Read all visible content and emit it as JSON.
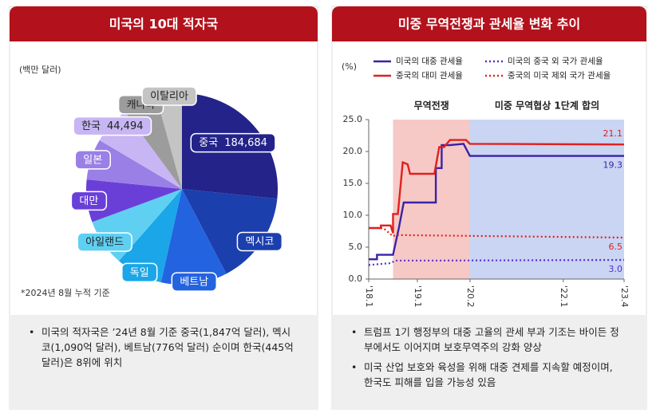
{
  "chart_data": [
    {
      "type": "pie",
      "title": "미국의 10대 적자국",
      "unit": "(백만 달러)",
      "note": "*2024년 8월 누적 기준",
      "categories": [
        "중국",
        "멕시코",
        "베트남",
        "독일",
        "아일랜드",
        "대만",
        "일본",
        "한국",
        "캐나다",
        "이탈리아"
      ],
      "values": [
        184684,
        109000,
        77600,
        55000,
        55000,
        50000,
        48000,
        44494,
        40000,
        30000
      ],
      "value_labels": [
        "184,684",
        null,
        null,
        null,
        null,
        null,
        null,
        "44,494",
        null,
        null
      ],
      "colors": [
        "#23238a",
        "#1c3fae",
        "#2363e0",
        "#1aa6e8",
        "#5fd0f2",
        "#6a3fd8",
        "#9a7fe6",
        "#c7b6f3",
        "#9c9c9c",
        "#c4c4c4"
      ],
      "bullets": [
        "미국의 적자국은 ’24년 8월 기준 중국(1,847억 달러), 멕시코(1,090억 달러), 베트남(776억 달러) 순이며 한국(445억 달러)은 8위에 위치"
      ]
    },
    {
      "type": "line",
      "title": "미중 무역전쟁과 관세율 변화 추이",
      "unit": "(%)",
      "xlim": [
        2018.0,
        2023.25
      ],
      "ylim": [
        0,
        25
      ],
      "xticks": [
        {
          "value": 2018.0,
          "label": "'18.1"
        },
        {
          "value": 2019.0,
          "label": "'19.1"
        },
        {
          "value": 2020.083,
          "label": "'20.2"
        },
        {
          "value": 2022.0,
          "label": "'22.1"
        },
        {
          "value": 2023.25,
          "label": "'23.4"
        }
      ],
      "yticks": [
        {
          "value": 0,
          "label": "0.0"
        },
        {
          "value": 5,
          "label": "5.0"
        },
        {
          "value": 10,
          "label": "10.0"
        },
        {
          "value": 15,
          "label": "15.0"
        },
        {
          "value": 20,
          "label": "20.0"
        },
        {
          "value": 25,
          "label": "25.0"
        }
      ],
      "regions": [
        {
          "label": "무역전쟁",
          "start": 2018.5,
          "end": 2020.083,
          "color": "#f6c9c6"
        },
        {
          "label": "미중 무역협상 1단계 합의",
          "start": 2020.083,
          "end": 2023.25,
          "color": "#c9d5f2"
        }
      ],
      "series": [
        {
          "name": "미국의 대중 관세율",
          "color": "#3b22a6",
          "dash": false,
          "end_label": "19.3",
          "x": [
            2018.0,
            2018.17,
            2018.17,
            2018.5,
            2018.62,
            2018.72,
            2019.38,
            2019.38,
            2019.5,
            2019.5,
            2019.67,
            2019.95,
            2020.08,
            2023.25
          ],
          "values": [
            3.1,
            3.1,
            3.8,
            3.8,
            8.0,
            12.0,
            12.0,
            17.4,
            17.4,
            21.0,
            21.0,
            21.2,
            19.3,
            19.3
          ]
        },
        {
          "name": "중국의 대미 관세율",
          "color": "#e0201f",
          "dash": false,
          "end_label": "21.1",
          "x": [
            2018.0,
            2018.25,
            2018.25,
            2018.45,
            2018.5,
            2018.5,
            2018.6,
            2018.7,
            2018.8,
            2018.85,
            2019.35,
            2019.45,
            2019.55,
            2019.67,
            2020.0,
            2020.08,
            2023.25
          ],
          "values": [
            8.0,
            8.0,
            8.4,
            8.4,
            7.2,
            10.2,
            10.2,
            18.3,
            18.0,
            16.5,
            16.5,
            20.7,
            20.7,
            21.8,
            21.8,
            21.2,
            21.1
          ]
        },
        {
          "name": "미국의 중국 외 국가 관세율",
          "color": "#5a2ad0",
          "dash": true,
          "end_label": "3.0",
          "x": [
            2018.0,
            2018.45,
            2018.55,
            2019.5,
            2023.25
          ],
          "values": [
            2.2,
            2.5,
            2.9,
            2.9,
            3.0
          ]
        },
        {
          "name": "중국의 미국 제외 국가 관세율",
          "color": "#e0201f",
          "dash": true,
          "end_label": "6.5",
          "x": [
            2018.0,
            2018.3,
            2018.5,
            2018.55,
            2023.25
          ],
          "values": [
            8.0,
            8.0,
            6.7,
            6.9,
            6.5
          ]
        }
      ],
      "bullets": [
        "트럼프 1기 행정부의 대중 고율의 관세 부과 기조는 바이든 정부에서도 이어지며 보호무역주의 강화 양상",
        "미국 산업 보호와 육성을 위해 대중 견제를 지속할 예정이며, 한국도 피해를 입을 가능성 있음"
      ]
    }
  ]
}
